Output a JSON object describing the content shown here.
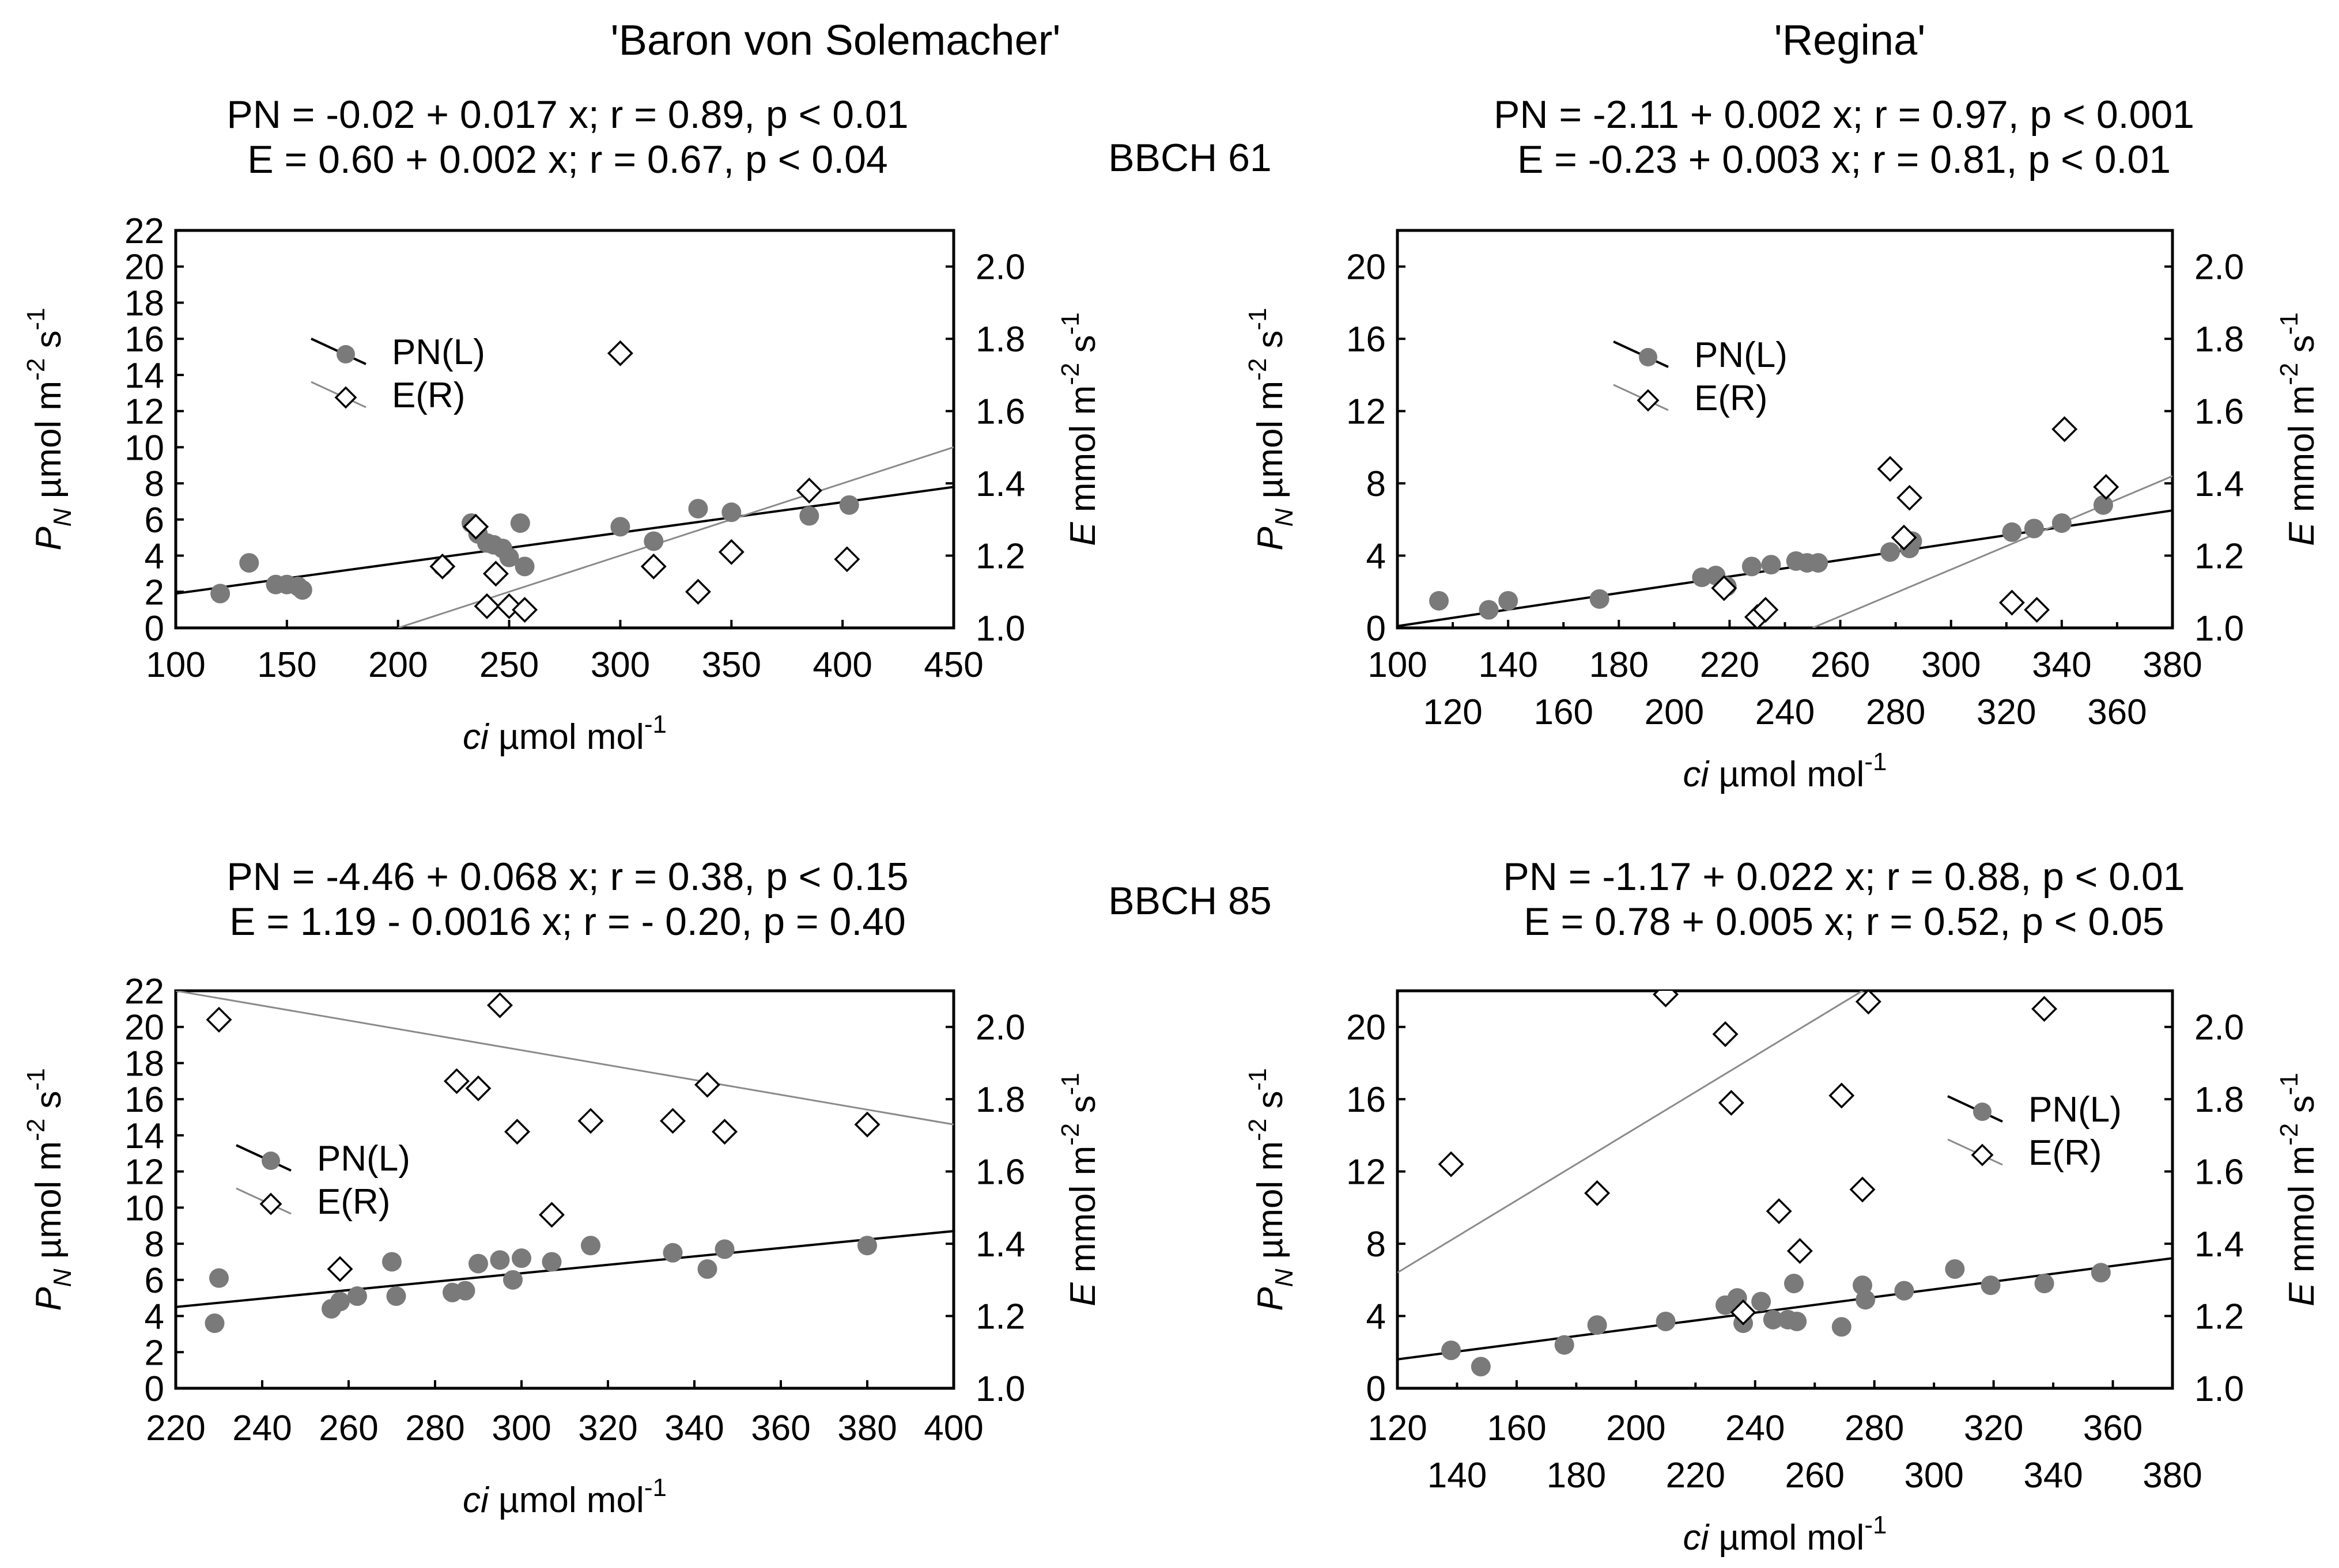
{
  "colors": {
    "pn": "#7a7a7a",
    "e_line": "#8a8a8a",
    "axis": "#000000",
    "pn_line": "#000000"
  },
  "chart_data": [
    {
      "type": "scatter",
      "cultivar": "'Baron von Solemacher'",
      "stage": "BBCH 61",
      "eq_pn": "PN = -0.02 + 0.017 x; r = 0.89, p < 0.01",
      "eq_e": "E = 0.60 + 0.002 x; r = 0.67, p < 0.04",
      "xlabel": "ci µmol mol-1",
      "ylabel_left": "PN µmol m-2 s-1",
      "ylabel_right": "E mmol m-2 s-1",
      "xlim": [
        100,
        450
      ],
      "xticks": [
        100,
        150,
        200,
        250,
        300,
        350,
        400,
        450
      ],
      "ylim_left": [
        0,
        22
      ],
      "yticks_left": [
        0,
        2,
        4,
        6,
        8,
        10,
        12,
        14,
        16,
        18,
        20,
        22
      ],
      "ylim_right": [
        1.0,
        2.1
      ],
      "yticks_right": [
        1.0,
        1.2,
        1.4,
        1.6,
        1.8,
        2.0
      ],
      "legend": [
        "PN(L)",
        "E(R)"
      ],
      "legend_position": "upper-left",
      "pn_points": [
        [
          120,
          1.9
        ],
        [
          133,
          3.6
        ],
        [
          145,
          2.4
        ],
        [
          150,
          2.4
        ],
        [
          155,
          2.3
        ],
        [
          157,
          2.1
        ],
        [
          220,
          3.4
        ],
        [
          233,
          5.8
        ],
        [
          236,
          5.2
        ],
        [
          240,
          4.7
        ],
        [
          243,
          4.6
        ],
        [
          247,
          4.4
        ],
        [
          250,
          3.9
        ],
        [
          255,
          5.8
        ],
        [
          257,
          3.4
        ],
        [
          300,
          5.6
        ],
        [
          315,
          4.8
        ],
        [
          335,
          6.6
        ],
        [
          350,
          6.4
        ],
        [
          385,
          6.2
        ],
        [
          403,
          6.8
        ]
      ],
      "e_points": [
        [
          220,
          1.17
        ],
        [
          235,
          1.28
        ],
        [
          240,
          1.06
        ],
        [
          244,
          1.15
        ],
        [
          250,
          1.06
        ],
        [
          257,
          1.05
        ],
        [
          300,
          1.76
        ],
        [
          315,
          1.17
        ],
        [
          335,
          1.1
        ],
        [
          350,
          1.21
        ],
        [
          385,
          1.38
        ],
        [
          402,
          1.19
        ]
      ],
      "pn_fit": [
        [
          100,
          1.9
        ],
        [
          450,
          7.8
        ]
      ],
      "e_fit": [
        [
          200,
          1.0
        ],
        [
          450,
          1.5
        ]
      ]
    },
    {
      "type": "scatter",
      "cultivar": "'Regina'",
      "stage": "",
      "eq_pn": "PN = -2.11 + 0.002 x; r = 0.97, p < 0.001",
      "eq_e": "E = -0.23 + 0.003 x; r = 0.81, p < 0.01",
      "xlabel": "ci µmol mol-1",
      "ylabel_left": "PN µmol m-2 s-1",
      "ylabel_right": "E mmol m-2 s-1",
      "xlim": [
        100,
        380
      ],
      "xticks_major": [
        100,
        140,
        180,
        220,
        260,
        300,
        340,
        380
      ],
      "xticks_minor": [
        120,
        160,
        200,
        240,
        280,
        320,
        360
      ],
      "ylim_left": [
        0,
        22
      ],
      "yticks_left": [
        0,
        4,
        8,
        12,
        16,
        20
      ],
      "ylim_right": [
        1.0,
        2.1
      ],
      "yticks_right": [
        1.0,
        1.2,
        1.4,
        1.6,
        1.8,
        2.0
      ],
      "legend": [
        "PN(L)",
        "E(R)"
      ],
      "legend_position": "upper-middle",
      "pn_points": [
        [
          115,
          1.5
        ],
        [
          133,
          1.0
        ],
        [
          140,
          1.5
        ],
        [
          173,
          1.6
        ],
        [
          210,
          2.8
        ],
        [
          215,
          2.9
        ],
        [
          219,
          2.3
        ],
        [
          228,
          3.4
        ],
        [
          235,
          3.5
        ],
        [
          244,
          3.7
        ],
        [
          248,
          3.6
        ],
        [
          252,
          3.6
        ],
        [
          278,
          4.2
        ],
        [
          285,
          4.4
        ],
        [
          286,
          4.8
        ],
        [
          322,
          5.3
        ],
        [
          330,
          5.5
        ],
        [
          340,
          5.8
        ],
        [
          355,
          6.8
        ]
      ],
      "e_points": [
        [
          218,
          1.11
        ],
        [
          230,
          1.03
        ],
        [
          233,
          1.05
        ],
        [
          278,
          1.44
        ],
        [
          283,
          1.25
        ],
        [
          285,
          1.36
        ],
        [
          322,
          1.07
        ],
        [
          331,
          1.05
        ],
        [
          341,
          1.55
        ],
        [
          356,
          1.39
        ]
      ],
      "pn_fit": [
        [
          100,
          0.1
        ],
        [
          380,
          6.5
        ]
      ],
      "e_fit": [
        [
          250,
          1.0
        ],
        [
          380,
          1.42
        ]
      ]
    },
    {
      "type": "scatter",
      "cultivar": "",
      "stage": "BBCH 85",
      "eq_pn": "PN = -4.46 + 0.068 x; r = 0.38, p < 0.15",
      "eq_e": "E = 1.19 - 0.0016 x; r = - 0.20, p = 0.40",
      "xlabel": "ci µmol mol-1",
      "ylabel_left": "PN µmol m-2 s-1",
      "ylabel_right": "E mmol m-2 s-1",
      "xlim": [
        220,
        400
      ],
      "xticks": [
        220,
        240,
        260,
        280,
        300,
        320,
        340,
        360,
        380,
        400
      ],
      "ylim_left": [
        0,
        22
      ],
      "yticks_left": [
        0,
        2,
        4,
        6,
        8,
        10,
        12,
        14,
        16,
        18,
        20,
        22
      ],
      "ylim_right": [
        1.0,
        2.1
      ],
      "yticks_right": [
        1.0,
        1.2,
        1.4,
        1.6,
        1.8,
        2.0
      ],
      "legend": [
        "PN(L)",
        "E(R)"
      ],
      "legend_position": "middle-left",
      "pn_points": [
        [
          229,
          3.6
        ],
        [
          230,
          6.1
        ],
        [
          256,
          4.4
        ],
        [
          258,
          4.8
        ],
        [
          262,
          5.1
        ],
        [
          270,
          7.0
        ],
        [
          271,
          5.1
        ],
        [
          284,
          5.3
        ],
        [
          287,
          5.4
        ],
        [
          290,
          6.9
        ],
        [
          295,
          7.1
        ],
        [
          298,
          6.0
        ],
        [
          300,
          7.2
        ],
        [
          307,
          7.0
        ],
        [
          316,
          7.9
        ],
        [
          335,
          7.5
        ],
        [
          343,
          6.6
        ],
        [
          347,
          7.7
        ],
        [
          380,
          7.9
        ]
      ],
      "e_points": [
        [
          230,
          2.02
        ],
        [
          258,
          1.33
        ],
        [
          285,
          1.85
        ],
        [
          290,
          1.83
        ],
        [
          295,
          2.06
        ],
        [
          299,
          1.71
        ],
        [
          307,
          1.48
        ],
        [
          316,
          1.74
        ],
        [
          335,
          1.74
        ],
        [
          343,
          1.84
        ],
        [
          347,
          1.71
        ],
        [
          380,
          1.73
        ]
      ],
      "pn_fit": [
        [
          220,
          4.5
        ],
        [
          400,
          8.7
        ]
      ],
      "e_fit": [
        [
          220,
          2.1
        ],
        [
          400,
          1.73
        ]
      ]
    },
    {
      "type": "scatter",
      "cultivar": "",
      "stage": "",
      "eq_pn": "PN = -1.17 + 0.022 x; r = 0.88, p < 0.01",
      "eq_e": "E = 0.78 + 0.005 x; r = 0.52, p < 0.05",
      "xlabel": "ci µmol mol-1",
      "ylabel_left": "PN µmol m-2 s-1",
      "ylabel_right": "E mmol m-2 s-1",
      "xlim": [
        120,
        380
      ],
      "xticks_major": [
        120,
        160,
        200,
        240,
        280,
        320,
        360
      ],
      "xticks_minor": [
        140,
        180,
        220,
        260,
        300,
        340,
        380
      ],
      "ylim_left": [
        0,
        22
      ],
      "yticks_left": [
        0,
        4,
        8,
        12,
        16,
        20
      ],
      "ylim_right": [
        1.0,
        2.1
      ],
      "yticks_right": [
        1.0,
        1.2,
        1.4,
        1.6,
        1.8,
        2.0
      ],
      "legend": [
        "PN(L)",
        "E(R)"
      ],
      "legend_position": "middle-right",
      "pn_points": [
        [
          138,
          2.1
        ],
        [
          148,
          1.2
        ],
        [
          176,
          2.4
        ],
        [
          187,
          3.5
        ],
        [
          210,
          3.7
        ],
        [
          230,
          4.6
        ],
        [
          234,
          5.0
        ],
        [
          236,
          3.6
        ],
        [
          242,
          4.8
        ],
        [
          246,
          3.8
        ],
        [
          251,
          3.8
        ],
        [
          253,
          5.8
        ],
        [
          254,
          3.7
        ],
        [
          269,
          3.4
        ],
        [
          276,
          5.7
        ],
        [
          277,
          4.9
        ],
        [
          290,
          5.4
        ],
        [
          307,
          6.6
        ],
        [
          319,
          5.7
        ],
        [
          337,
          5.8
        ],
        [
          356,
          6.4
        ]
      ],
      "e_points": [
        [
          138,
          1.62
        ],
        [
          187,
          1.54
        ],
        [
          210,
          2.09
        ],
        [
          230,
          1.98
        ],
        [
          232,
          1.79
        ],
        [
          236,
          1.21
        ],
        [
          248,
          1.49
        ],
        [
          255,
          1.38
        ],
        [
          269,
          1.81
        ],
        [
          276,
          1.55
        ],
        [
          278,
          2.07
        ],
        [
          337,
          2.05
        ]
      ],
      "pn_fit": [
        [
          120,
          1.6
        ],
        [
          380,
          7.2
        ]
      ],
      "e_fit": [
        [
          120,
          1.32
        ],
        [
          280,
          2.12
        ]
      ]
    }
  ]
}
